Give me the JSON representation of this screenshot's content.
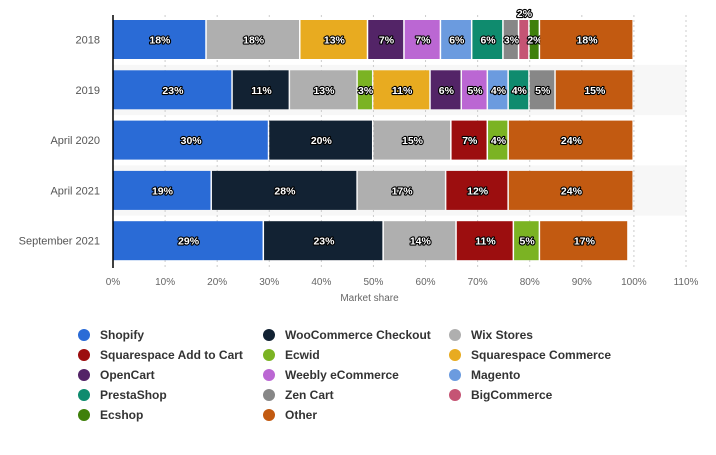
{
  "chart_data": {
    "type": "bar",
    "orientation": "horizontal",
    "stacked": true,
    "xlabel": "Market share",
    "xlim": [
      0,
      110
    ],
    "xticks": [
      "0%",
      "10%",
      "20%",
      "30%",
      "40%",
      "50%",
      "60%",
      "70%",
      "80%",
      "90%",
      "100%",
      "110%"
    ],
    "categories": [
      "2018",
      "2019",
      "April 2020",
      "April 2021",
      "September 2021"
    ],
    "series": [
      {
        "name": "Shopify",
        "color": "#2a6bd6",
        "values": [
          18,
          23,
          30,
          19,
          29
        ]
      },
      {
        "name": "WooCommerce Checkout",
        "color": "#122233",
        "values": [
          null,
          11,
          20,
          28,
          23
        ]
      },
      {
        "name": "Wix Stores",
        "color": "#afafaf",
        "values": [
          18,
          13,
          15,
          17,
          14
        ]
      },
      {
        "name": "Squarespace Add to Cart",
        "color": "#9c0e0f",
        "values": [
          null,
          null,
          7,
          12,
          11
        ]
      },
      {
        "name": "Ecwid",
        "color": "#7bb323",
        "values": [
          null,
          3,
          4,
          null,
          5
        ]
      },
      {
        "name": "Squarespace Commerce",
        "color": "#e8ab20",
        "values": [
          13,
          11,
          null,
          null,
          null
        ]
      },
      {
        "name": "OpenCart",
        "color": "#532467",
        "values": [
          7,
          6,
          null,
          null,
          null
        ]
      },
      {
        "name": "Weebly eCommerce",
        "color": "#bb67d3",
        "values": [
          7,
          5,
          null,
          null,
          null
        ]
      },
      {
        "name": "Magento",
        "color": "#6b9bdf",
        "values": [
          6,
          4,
          null,
          null,
          null
        ]
      },
      {
        "name": "PrestaShop",
        "color": "#0f8b6e",
        "values": [
          6,
          4,
          null,
          null,
          null
        ]
      },
      {
        "name": "Zen Cart",
        "color": "#878787",
        "values": [
          3,
          5,
          null,
          null,
          null
        ]
      },
      {
        "name": "BigCommerce",
        "color": "#c55474",
        "values": [
          2,
          null,
          null,
          null,
          null
        ]
      },
      {
        "name": "Ecshop",
        "color": "#3f800b",
        "values": [
          2,
          null,
          null,
          null,
          null
        ]
      },
      {
        "name": "Other",
        "color": "#c25a11",
        "values": [
          18,
          15,
          24,
          24,
          17
        ]
      }
    ],
    "legend_position": "bottom"
  }
}
